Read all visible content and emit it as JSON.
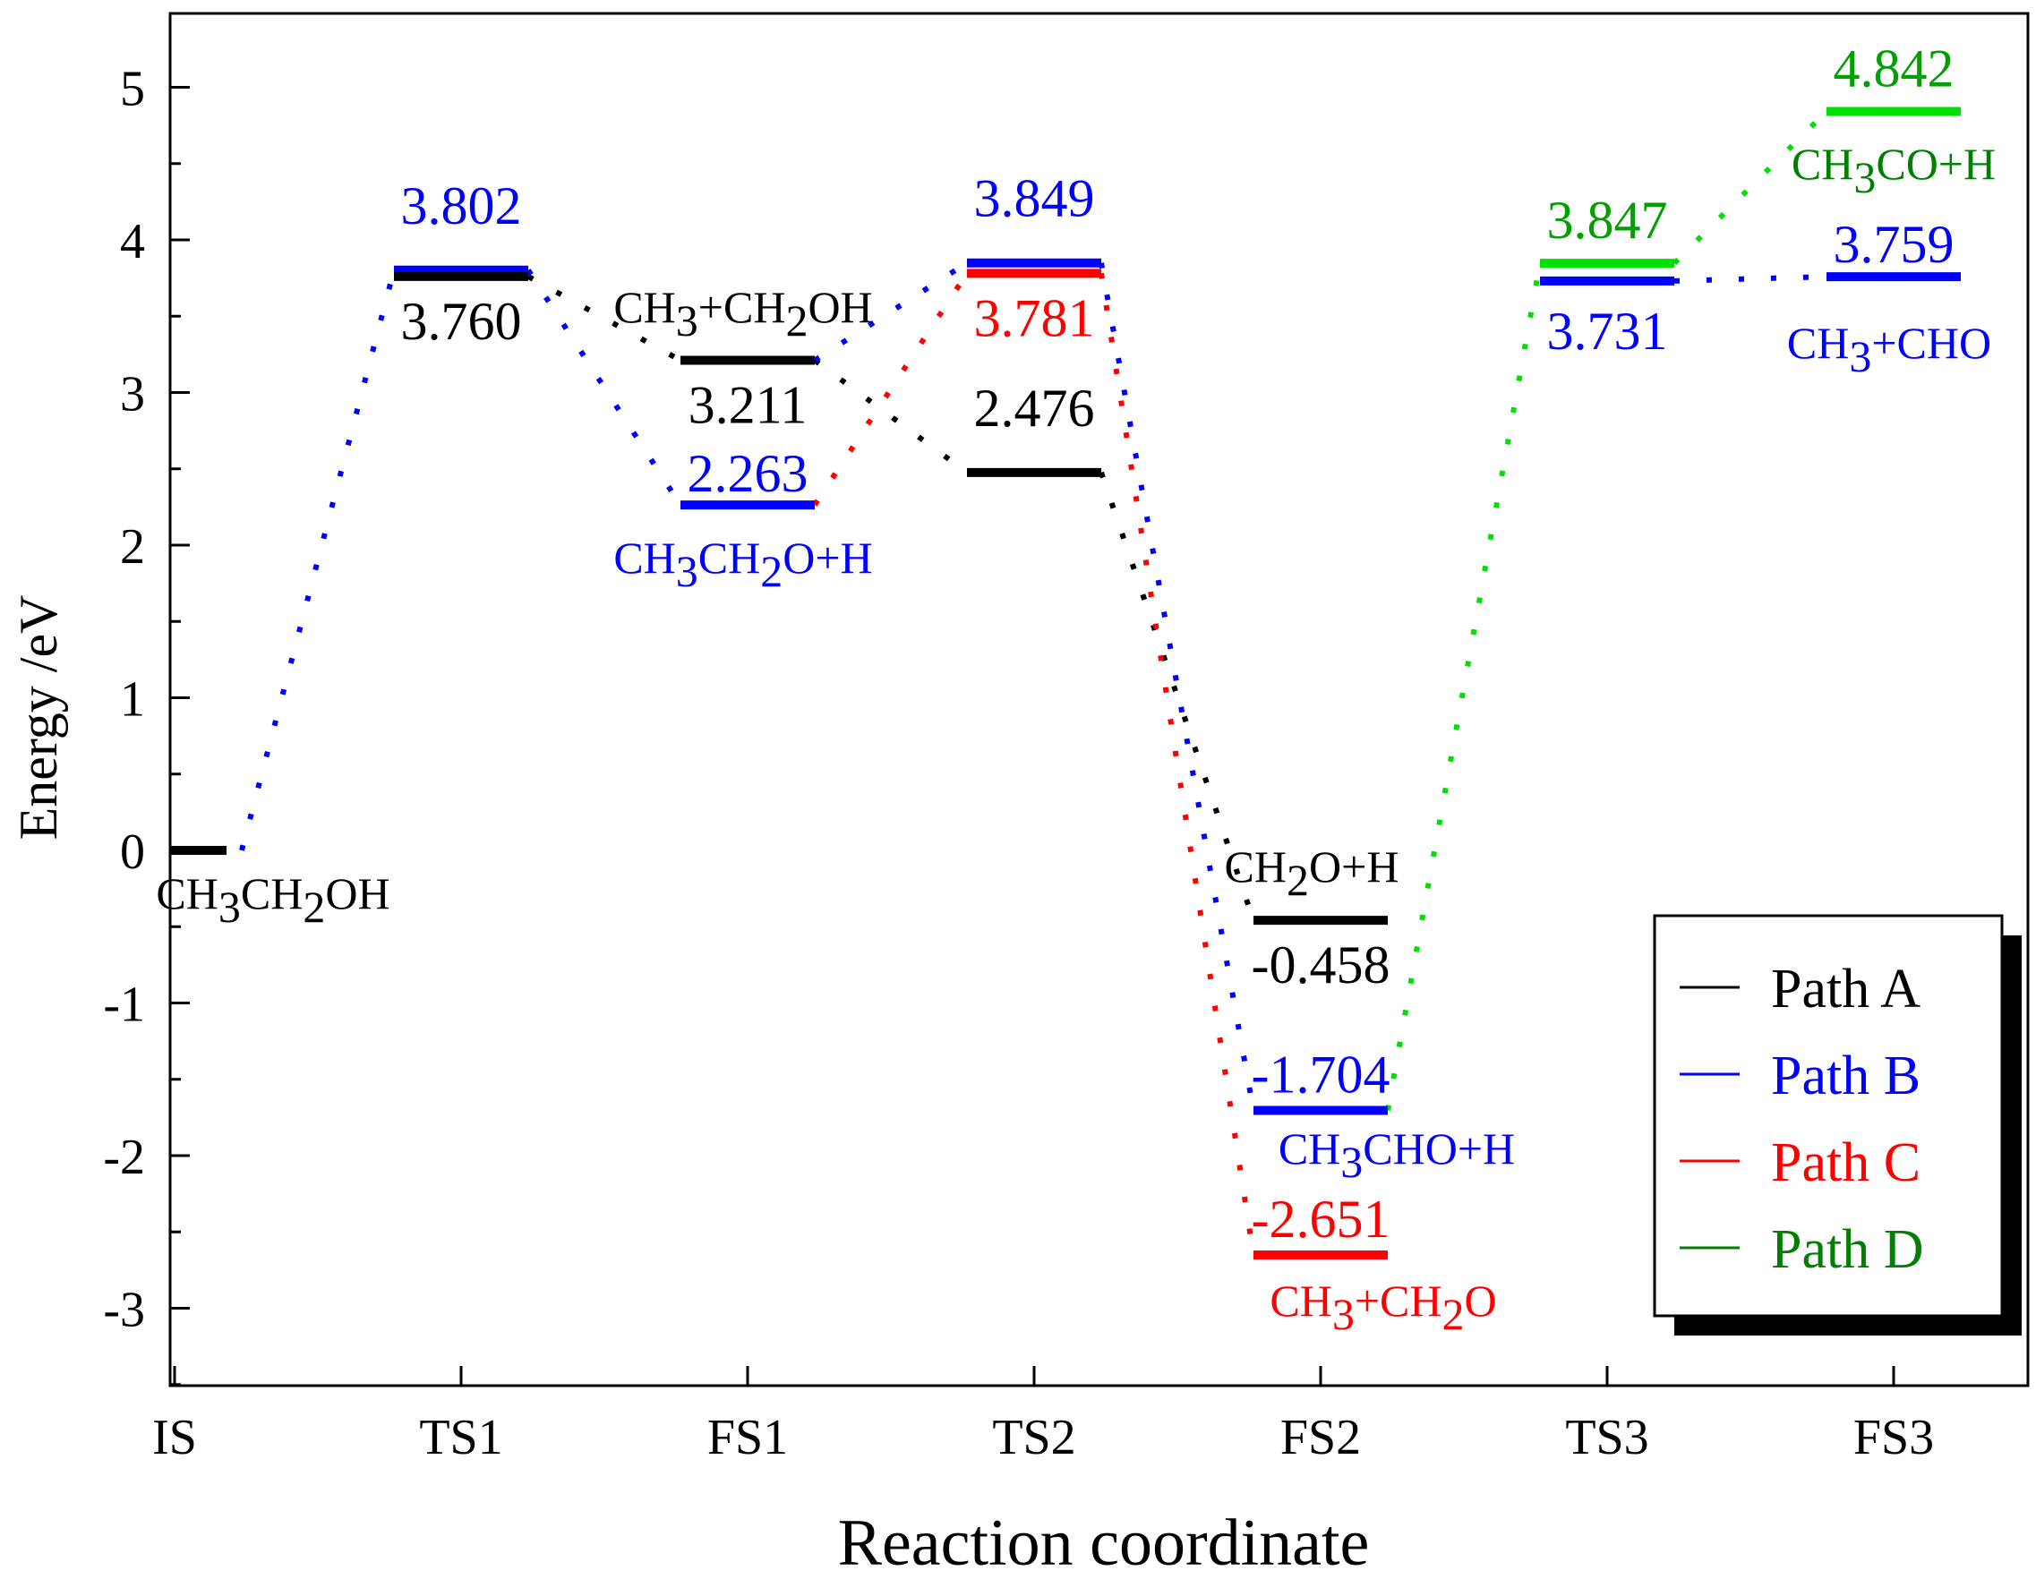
{
  "chart_data": {
    "type": "energy-profile",
    "xlabel": "Reaction coordinate",
    "ylabel": "Energy /eV",
    "ylim": [
      -3.5,
      5.5
    ],
    "yticks": [
      -3,
      -2,
      -1,
      0,
      1,
      2,
      3,
      4,
      5
    ],
    "categories": [
      "IS",
      "TS1",
      "FS1",
      "TS2",
      "FS2",
      "TS3",
      "FS3"
    ],
    "colors": {
      "Path A": "#000000",
      "Path B": "#0000ff",
      "Path C": "#ff0000",
      "Path D": "#00a000",
      "Path D line": "#00e000",
      "axis": "#000000"
    },
    "legend": {
      "position": "bottom-right",
      "entries": [
        {
          "label": "Path A",
          "color": "#000000"
        },
        {
          "label": "Path B",
          "color": "#0000ff"
        },
        {
          "label": "Path C",
          "color": "#ff0000"
        },
        {
          "label": "Path D",
          "color": "#008000"
        }
      ]
    },
    "levels": [
      {
        "id": "is",
        "x": 0,
        "y": 0,
        "path": "Path A",
        "value_label": ""
      },
      {
        "id": "ts1b",
        "x": 1,
        "y": 3.802,
        "path": "Path B",
        "value_label": "3.802"
      },
      {
        "id": "ts1a",
        "x": 1,
        "y": 3.76,
        "path": "Path A",
        "value_label": "3.760"
      },
      {
        "id": "fs1a",
        "x": 2,
        "y": 3.211,
        "path": "Path A",
        "value_label": "3.211"
      },
      {
        "id": "fs1b",
        "x": 2,
        "y": 2.263,
        "path": "Path B",
        "value_label": "2.263"
      },
      {
        "id": "ts2b",
        "x": 3,
        "y": 3.849,
        "path": "Path B",
        "value_label": "3.849"
      },
      {
        "id": "ts2c",
        "x": 3,
        "y": 3.781,
        "path": "Path C",
        "value_label": "3.781"
      },
      {
        "id": "ts2a",
        "x": 3,
        "y": 2.476,
        "path": "Path A",
        "value_label": "2.476"
      },
      {
        "id": "fs2a",
        "x": 4,
        "y": -0.458,
        "path": "Path A",
        "value_label": "-0.458"
      },
      {
        "id": "fs2b",
        "x": 4,
        "y": -1.704,
        "path": "Path B",
        "value_label": "-1.704"
      },
      {
        "id": "fs2c",
        "x": 4,
        "y": -2.651,
        "path": "Path C",
        "value_label": "-2.651"
      },
      {
        "id": "ts3d",
        "x": 5,
        "y": 3.847,
        "path": "Path D",
        "value_label": "3.847"
      },
      {
        "id": "ts3b",
        "x": 5,
        "y": 3.731,
        "path": "Path B",
        "value_label": "3.731"
      },
      {
        "id": "fs3d",
        "x": 6,
        "y": 4.842,
        "path": "Path D",
        "value_label": "4.842"
      },
      {
        "id": "fs3b",
        "x": 6,
        "y": 3.759,
        "path": "Path B",
        "value_label": "3.759"
      }
    ],
    "connectors": [
      {
        "from": "is",
        "to": "ts1b",
        "path": "Path B"
      },
      {
        "from": "ts1a",
        "to": "fs1a",
        "path": "Path A"
      },
      {
        "from": "ts1b",
        "to": "fs1b",
        "path": "Path B"
      },
      {
        "from": "fs1a",
        "to": "ts2a",
        "path": "Path A"
      },
      {
        "from": "fs1b",
        "to": "ts2c",
        "path": "Path C"
      },
      {
        "from": "fs1a",
        "to": "ts2b",
        "path": "Path B"
      },
      {
        "from": "ts2a",
        "to": "fs2a",
        "path": "Path A"
      },
      {
        "from": "ts2b",
        "to": "fs2b",
        "path": "Path B"
      },
      {
        "from": "ts2c",
        "to": "fs2c",
        "path": "Path C"
      },
      {
        "from": "fs2b",
        "to": "ts3d",
        "path": "Path D"
      },
      {
        "from": "ts3d",
        "to": "fs3d",
        "path": "Path D"
      },
      {
        "from": "ts3b",
        "to": "fs3b",
        "path": "Path B"
      }
    ],
    "species": [
      {
        "id": "sp-is",
        "parts": [
          [
            "CH",
            ""
          ],
          [
            "3",
            "sub"
          ],
          [
            "CH",
            ""
          ],
          [
            "2",
            "sub"
          ],
          [
            "OH",
            ""
          ]
        ],
        "color": "#000000"
      },
      {
        "id": "sp-fs1a",
        "parts": [
          [
            "CH",
            ""
          ],
          [
            "3",
            "sub"
          ],
          [
            "+CH",
            ""
          ],
          [
            "2",
            "sub"
          ],
          [
            "OH",
            ""
          ]
        ],
        "color": "#000000"
      },
      {
        "id": "sp-fs1b",
        "parts": [
          [
            "CH",
            ""
          ],
          [
            "3",
            "sub"
          ],
          [
            "CH",
            ""
          ],
          [
            "2",
            "sub"
          ],
          [
            "O+H",
            ""
          ]
        ],
        "color": "#0000ff"
      },
      {
        "id": "sp-fs2a",
        "parts": [
          [
            "CH",
            ""
          ],
          [
            "2",
            "sub"
          ],
          [
            "O+H",
            ""
          ]
        ],
        "color": "#000000"
      },
      {
        "id": "sp-fs2b",
        "parts": [
          [
            "CH",
            ""
          ],
          [
            "3",
            "sub"
          ],
          [
            "CHO+H",
            ""
          ]
        ],
        "color": "#0000ff"
      },
      {
        "id": "sp-fs2c",
        "parts": [
          [
            "CH",
            ""
          ],
          [
            "3",
            "sub"
          ],
          [
            "+CH",
            ""
          ],
          [
            "2",
            "sub"
          ],
          [
            "O",
            ""
          ]
        ],
        "color": "#ff0000"
      },
      {
        "id": "sp-fs3d",
        "parts": [
          [
            "CH",
            ""
          ],
          [
            "3",
            "sub"
          ],
          [
            "CO+H",
            ""
          ]
        ],
        "color": "#008000"
      },
      {
        "id": "sp-fs3b",
        "parts": [
          [
            "CH",
            ""
          ],
          [
            "3",
            "sub"
          ],
          [
            "+CHO",
            ""
          ]
        ],
        "color": "#0000ff"
      }
    ]
  }
}
